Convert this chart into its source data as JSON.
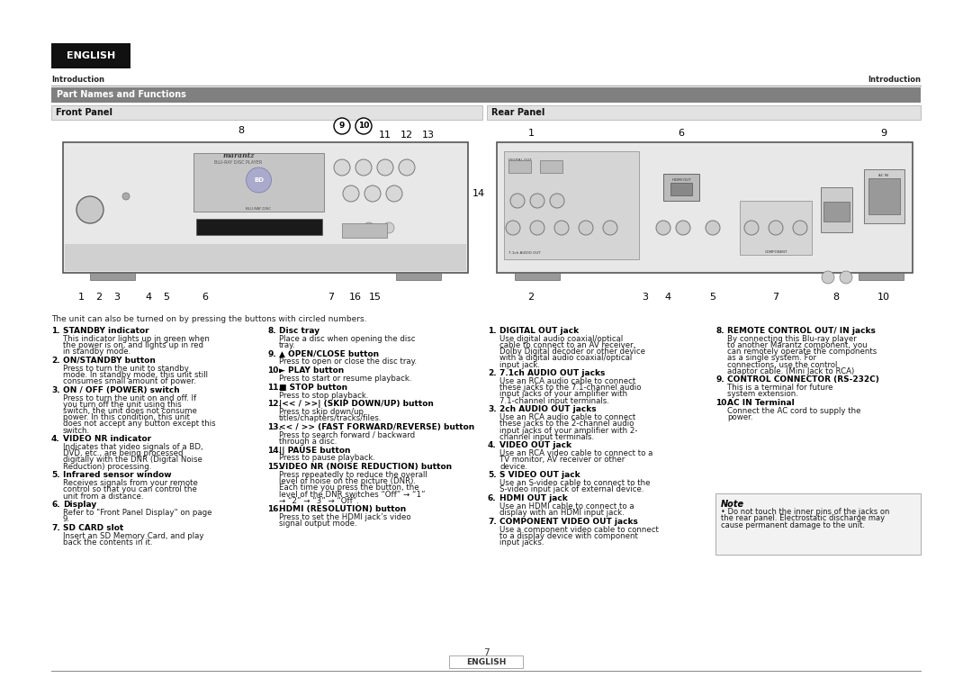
{
  "bg_color": "#ffffff",
  "english_box_color": "#111111",
  "english_text": "ENGLISH",
  "english_text_color": "#ffffff",
  "section_bar_color": "#808080",
  "section_bar_text": "Part Names and Functions",
  "section_bar_text_color": "#ffffff",
  "intro_label": "Introduction",
  "front_panel_label": "Front Panel",
  "rear_panel_label": "Rear Panel",
  "page_number": "7",
  "page_label": "ENGLISH",
  "unit_note": "The unit can also be turned on by pressing the buttons with circled numbers.",
  "left_descriptions": [
    {
      "num": "1.",
      "bold": "STANDBY indicator",
      "text": "This indicator lights up in green when the power is on, and lights up in red in standby mode."
    },
    {
      "num": "2.",
      "bold": "ON/STANDBY button",
      "text": "Press to turn the unit to standby mode. In standby mode, this unit still consumes small amount of power."
    },
    {
      "num": "3.",
      "bold": "ON / OFF (POWER) switch",
      "text": "Press to turn the unit on and off. If you turn off the unit using this switch, the unit does not consume power. In this condition, this unit does not accept any button except this switch."
    },
    {
      "num": "4.",
      "bold": "VIDEO NR indicator",
      "text": "Indicates that video signals of a BD, DVD, etc., are being processed digitally with the DNR (Digital Noise Reduction) processing."
    },
    {
      "num": "5.",
      "bold": "Infrared sensor window",
      "text": "Receives signals from your remote control so that you can control the unit from a distance."
    },
    {
      "num": "6.",
      "bold": "Display",
      "text": "Refer to \"Front Panel Display\" on page 9."
    },
    {
      "num": "7.",
      "bold": "SD CARD slot",
      "text": "Insert an SD Memory Card, and play back the contents in it."
    }
  ],
  "middle_descriptions": [
    {
      "num": "8.",
      "bold": "Disc tray",
      "text": "Place a disc when opening the disc tray."
    },
    {
      "num": "9.",
      "bold": "▲ OPEN/CLOSE button",
      "text": "Press to open or close the disc tray."
    },
    {
      "num": "10.",
      "bold": "► PLAY button",
      "text": "Press to start or resume playback."
    },
    {
      "num": "11.",
      "bold": "■ STOP button",
      "text": "Press to stop playback."
    },
    {
      "num": "12.",
      "bold": "|<< / >>| (SKIP DOWN/UP) button",
      "text": "Press to skip down/up titles/chapters/tracks/files."
    },
    {
      "num": "13.",
      "bold": "<< / >> (FAST FORWARD/REVERSE) button",
      "text": "Press to search forward / backward through a disc."
    },
    {
      "num": "14.",
      "bold": "|| PAUSE button",
      "text": "Press to pause playback."
    },
    {
      "num": "15.",
      "bold": "VIDEO NR (NOISE REDUCTION) button",
      "text": "Press repeatedly to reduce the overall level of noise on the picture (DNR). Each time you press the button, the level of the DNR switches “Off” → “1” → “2” → “3” → “Off”."
    },
    {
      "num": "16.",
      "bold": "HDMI (RESOLUTION) button",
      "text": "Press to set the HDMI jack’s video signal output mode."
    }
  ],
  "right_descriptions_col1": [
    {
      "num": "1.",
      "bold": "DIGITAL OUT jack",
      "text": "Use digital audio coaxial/optical cable to connect to an AV receiver, Dolby Digital decoder or other device with a digital audio coaxial/optical input jack."
    },
    {
      "num": "2.",
      "bold": "7.1ch AUDIO OUT jacks",
      "text": "Use an RCA audio cable to connect these jacks to the 7.1-channel audio input jacks of your amplifier with 7.1-channel input terminals."
    },
    {
      "num": "3.",
      "bold": "2ch AUDIO OUT jacks",
      "text": "Use an RCA audio cable to connect these jacks to the 2-channel audio input jacks of your amplifier with 2- channel input terminals."
    },
    {
      "num": "4.",
      "bold": "VIDEO OUT jack",
      "text": "Use an RCA video cable to connect to a TV monitor, AV receiver or other device."
    },
    {
      "num": "5.",
      "bold": "S VIDEO OUT jack",
      "text": "Use an S-video cable to connect to the S-video input jack of external device."
    },
    {
      "num": "6.",
      "bold": "HDMI OUT jack",
      "text": "Use an HDMI cable to connect to a display with an HDMI input jack."
    },
    {
      "num": "7.",
      "bold": "COMPONENT VIDEO OUT jacks",
      "text": "Use a component video cable to connect to a display device with component input jacks."
    }
  ],
  "right_descriptions_col2": [
    {
      "num": "8.",
      "bold": "REMOTE CONTROL OUT/ IN jacks",
      "text": "By connecting this Blu-ray player to another Marantz component, you can remotely operate the components as a single system. For connections, use the control adaptor cable. (Mini Jack to RCA)"
    },
    {
      "num": "9.",
      "bold": "CONTROL CONNECTOR (RS-232C)",
      "text": "This is a terminal for future system extension."
    },
    {
      "num": "10.",
      "bold": "AC IN Terminal",
      "text": "Connect the AC cord to supply the power."
    }
  ],
  "note_title": "Note",
  "note_content": "• Do not touch the inner pins of the jacks on the rear panel. Electrostatic discharge may cause permanent damage to the unit."
}
